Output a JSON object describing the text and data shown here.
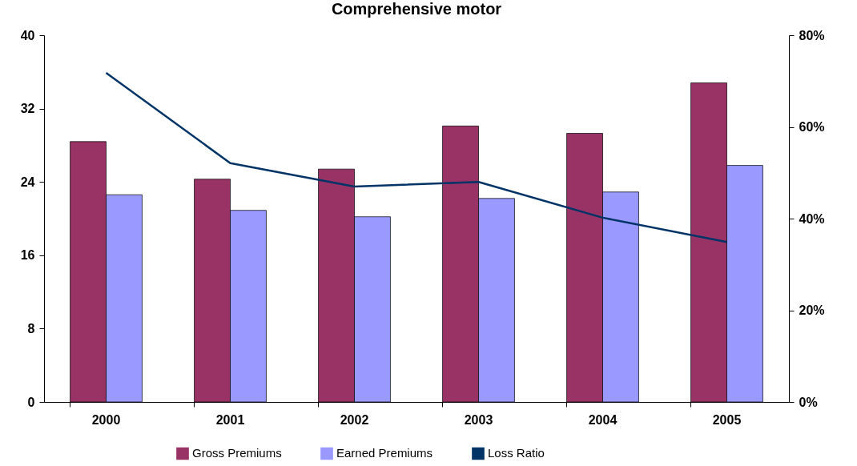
{
  "chart_data": {
    "type": "bar",
    "title": "Comprehensive motor",
    "categories": [
      "2000",
      "2001",
      "2002",
      "2003",
      "2004",
      "2005"
    ],
    "series": [
      {
        "name": "Gross Premiums",
        "color": "#993366",
        "values": [
          28.4,
          24.3,
          25.4,
          30.1,
          29.3,
          34.8
        ]
      },
      {
        "name": "Earned Premiums",
        "color": "#9999ff",
        "values": [
          22.6,
          20.9,
          20.2,
          22.2,
          22.9,
          25.8
        ]
      },
      {
        "name": "Loss Ratio",
        "type": "line",
        "axis": "y2",
        "color": "#003366",
        "values": [
          71.8,
          52.1,
          47.0,
          48.0,
          40.2,
          34.9
        ]
      }
    ],
    "ylim": [
      0,
      40
    ],
    "yticks": [
      0,
      8,
      16,
      24,
      32,
      40
    ],
    "y2lim": [
      0,
      80
    ],
    "y2ticks": [
      {
        "value": 0,
        "label": "0%"
      },
      {
        "value": 20,
        "label": "20%"
      },
      {
        "value": 40,
        "label": "40%"
      },
      {
        "value": 60,
        "label": "60%"
      },
      {
        "value": 80,
        "label": "80%"
      }
    ],
    "legend": "bottom",
    "grid": false,
    "marker": "none"
  }
}
